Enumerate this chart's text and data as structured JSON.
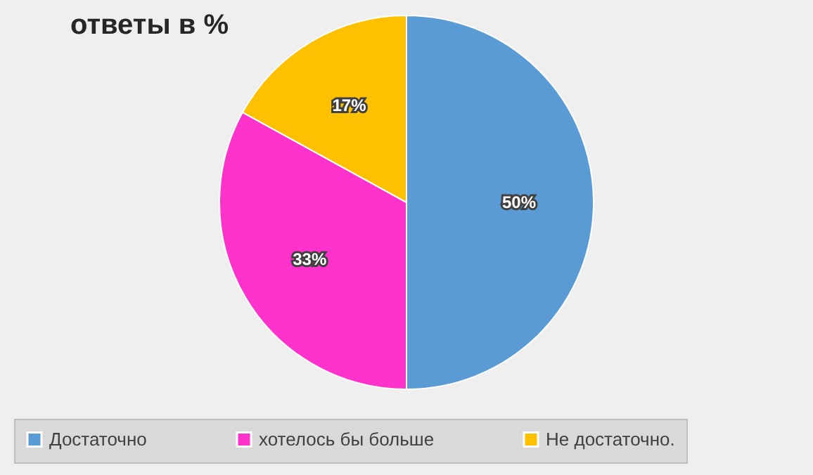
{
  "chart_data": {
    "type": "pie",
    "title": "ответы в %",
    "categories": [
      "Достаточно",
      "хотелось бы больше",
      "Не достаточно."
    ],
    "values": [
      50,
      33,
      17
    ],
    "colors": [
      "#5b9bd5",
      "#ff33cc",
      "#ffc000"
    ],
    "value_labels": [
      "50%",
      "33%",
      "17%"
    ],
    "legend": "bottom"
  }
}
